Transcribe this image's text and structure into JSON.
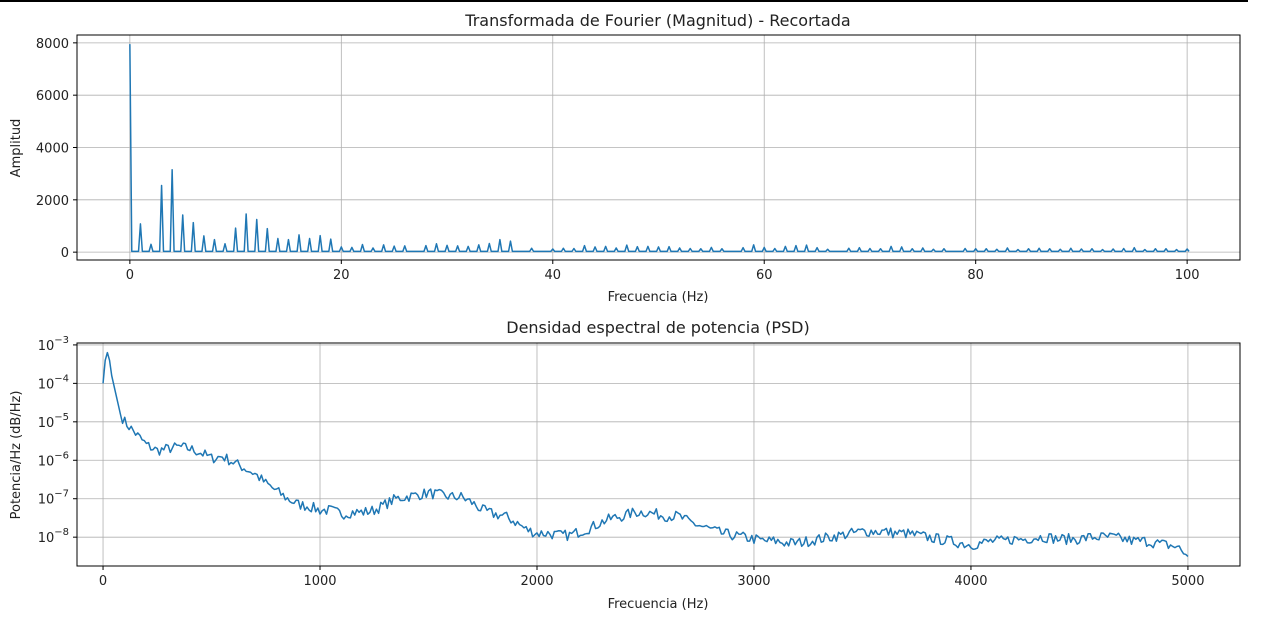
{
  "chart_data": [
    {
      "type": "line",
      "title": "Transformada de Fourier (Magnitud) - Recortada",
      "xlabel": "Frecuencia (Hz)",
      "ylabel": "Amplitud",
      "xlim": [
        -5,
        105
      ],
      "ylim": [
        -300,
        8300
      ],
      "xticks": [
        0,
        20,
        40,
        60,
        80,
        100
      ],
      "yticks": [
        0,
        2000,
        4000,
        6000,
        8000
      ],
      "grid": true,
      "color": "#1f77b4",
      "series": [
        {
          "baseline": 30,
          "peaks": [
            [
              0,
              7950
            ],
            [
              1,
              1080
            ],
            [
              2,
              300
            ],
            [
              3,
              2550
            ],
            [
              4,
              3150
            ],
            [
              5,
              1420
            ],
            [
              6,
              1130
            ],
            [
              7,
              620
            ],
            [
              8,
              480
            ],
            [
              9,
              320
            ],
            [
              10,
              920
            ],
            [
              11,
              1460
            ],
            [
              12,
              1250
            ],
            [
              13,
              900
            ],
            [
              14,
              520
            ],
            [
              15,
              480
            ],
            [
              16,
              660
            ],
            [
              17,
              520
            ],
            [
              18,
              630
            ],
            [
              19,
              500
            ],
            [
              20,
              200
            ],
            [
              21,
              180
            ],
            [
              22,
              290
            ],
            [
              23,
              160
            ],
            [
              24,
              280
            ],
            [
              25,
              230
            ],
            [
              26,
              240
            ],
            [
              28,
              250
            ],
            [
              29,
              320
            ],
            [
              30,
              260
            ],
            [
              31,
              240
            ],
            [
              32,
              220
            ],
            [
              33,
              280
            ],
            [
              34,
              330
            ],
            [
              35,
              480
            ],
            [
              36,
              420
            ],
            [
              38,
              150
            ],
            [
              40,
              120
            ],
            [
              41,
              150
            ],
            [
              42,
              140
            ],
            [
              43,
              250
            ],
            [
              44,
              200
            ],
            [
              45,
              220
            ],
            [
              46,
              160
            ],
            [
              47,
              270
            ],
            [
              48,
              210
            ],
            [
              49,
              220
            ],
            [
              50,
              200
            ],
            [
              51,
              210
            ],
            [
              52,
              160
            ],
            [
              53,
              140
            ],
            [
              54,
              130
            ],
            [
              55,
              180
            ],
            [
              56,
              130
            ],
            [
              58,
              170
            ],
            [
              59,
              280
            ],
            [
              60,
              180
            ],
            [
              61,
              140
            ],
            [
              62,
              220
            ],
            [
              63,
              250
            ],
            [
              64,
              270
            ],
            [
              65,
              170
            ],
            [
              66,
              110
            ],
            [
              68,
              150
            ],
            [
              69,
              170
            ],
            [
              70,
              140
            ],
            [
              71,
              130
            ],
            [
              72,
              220
            ],
            [
              73,
              200
            ],
            [
              74,
              130
            ],
            [
              75,
              160
            ],
            [
              76,
              110
            ],
            [
              77,
              130
            ],
            [
              79,
              140
            ],
            [
              80,
              130
            ],
            [
              81,
              130
            ],
            [
              82,
              110
            ],
            [
              83,
              160
            ],
            [
              84,
              100
            ],
            [
              85,
              130
            ],
            [
              86,
              150
            ],
            [
              87,
              130
            ],
            [
              88,
              110
            ],
            [
              89,
              150
            ],
            [
              90,
              120
            ],
            [
              91,
              130
            ],
            [
              92,
              100
            ],
            [
              93,
              120
            ],
            [
              94,
              140
            ],
            [
              95,
              170
            ],
            [
              96,
              100
            ],
            [
              97,
              130
            ],
            [
              98,
              130
            ],
            [
              99,
              100
            ],
            [
              100,
              120
            ]
          ]
        }
      ]
    },
    {
      "type": "line",
      "title": "Densidad espectral de potencia (PSD)",
      "xlabel": "Frecuencia (Hz)",
      "ylabel": "Potencia/Hz (dB/Hz)",
      "yscale": "log",
      "xlim": [
        -120,
        5240
      ],
      "ylim_exp": [
        -8.75,
        -2.95
      ],
      "xticks": [
        0,
        1000,
        2000,
        3000,
        4000,
        5000
      ],
      "yticks": [
        {
          "base": "10",
          "exp": "−8",
          "value": -8
        },
        {
          "base": "10",
          "exp": "−7",
          "value": -7
        },
        {
          "base": "10",
          "exp": "−6",
          "value": -6
        },
        {
          "base": "10",
          "exp": "−5",
          "value": -5
        },
        {
          "base": "10",
          "exp": "−4",
          "value": -4
        },
        {
          "base": "10",
          "exp": "−3",
          "value": -3
        }
      ],
      "grid": true,
      "color": "#1f77b4",
      "series": [
        {
          "x": [
            0,
            10,
            20,
            30,
            40,
            60,
            80,
            100,
            150,
            200,
            250,
            300,
            350,
            400,
            450,
            500,
            550,
            600,
            650,
            700,
            750,
            800,
            850,
            900,
            950,
            1000,
            1050,
            1100,
            1150,
            1200,
            1250,
            1300,
            1350,
            1400,
            1450,
            1500,
            1550,
            1600,
            1650,
            1700,
            1750,
            1800,
            1850,
            1900,
            1950,
            2000,
            2050,
            2100,
            2150,
            2200,
            2250,
            2300,
            2350,
            2400,
            2450,
            2500,
            2550,
            2600,
            2650,
            2700,
            2750,
            2800,
            2850,
            2900,
            2950,
            3000,
            3050,
            3100,
            3150,
            3200,
            3250,
            3300,
            3350,
            3400,
            3450,
            3500,
            3550,
            3600,
            3650,
            3700,
            3750,
            3800,
            3850,
            3900,
            3950,
            4000,
            4050,
            4100,
            4150,
            4200,
            4250,
            4300,
            4350,
            4400,
            4450,
            4500,
            4550,
            4600,
            4650,
            4700,
            4750,
            4800,
            4850,
            4900,
            4950,
            5000
          ],
          "log10_y": [
            -4.0,
            -3.4,
            -3.2,
            -3.4,
            -3.8,
            -4.3,
            -4.8,
            -5.0,
            -5.3,
            -5.6,
            -5.75,
            -5.7,
            -5.65,
            -5.7,
            -5.8,
            -5.95,
            -5.9,
            -6.05,
            -6.2,
            -6.35,
            -6.6,
            -6.8,
            -7.0,
            -7.15,
            -7.2,
            -7.3,
            -7.3,
            -7.4,
            -7.35,
            -7.35,
            -7.3,
            -7.15,
            -7.0,
            -6.95,
            -6.9,
            -6.85,
            -6.9,
            -6.95,
            -6.95,
            -7.1,
            -7.3,
            -7.4,
            -7.45,
            -7.6,
            -7.8,
            -7.9,
            -7.9,
            -7.95,
            -7.95,
            -7.85,
            -7.75,
            -7.6,
            -7.5,
            -7.45,
            -7.35,
            -7.35,
            -7.4,
            -7.45,
            -7.45,
            -7.6,
            -7.7,
            -7.8,
            -7.9,
            -7.95,
            -8.0,
            -8.05,
            -8.1,
            -8.1,
            -8.15,
            -8.15,
            -8.1,
            -8.05,
            -8.0,
            -7.95,
            -7.9,
            -7.85,
            -7.85,
            -7.85,
            -7.9,
            -7.9,
            -7.95,
            -8.0,
            -8.05,
            -8.1,
            -8.15,
            -8.2,
            -8.15,
            -8.1,
            -8.1,
            -8.05,
            -8.05,
            -8.0,
            -8.0,
            -8.05,
            -8.05,
            -8.05,
            -8.0,
            -8.0,
            -8.0,
            -8.05,
            -8.1,
            -8.1,
            -8.15,
            -8.2,
            -8.25,
            -8.5
          ]
        }
      ]
    }
  ]
}
